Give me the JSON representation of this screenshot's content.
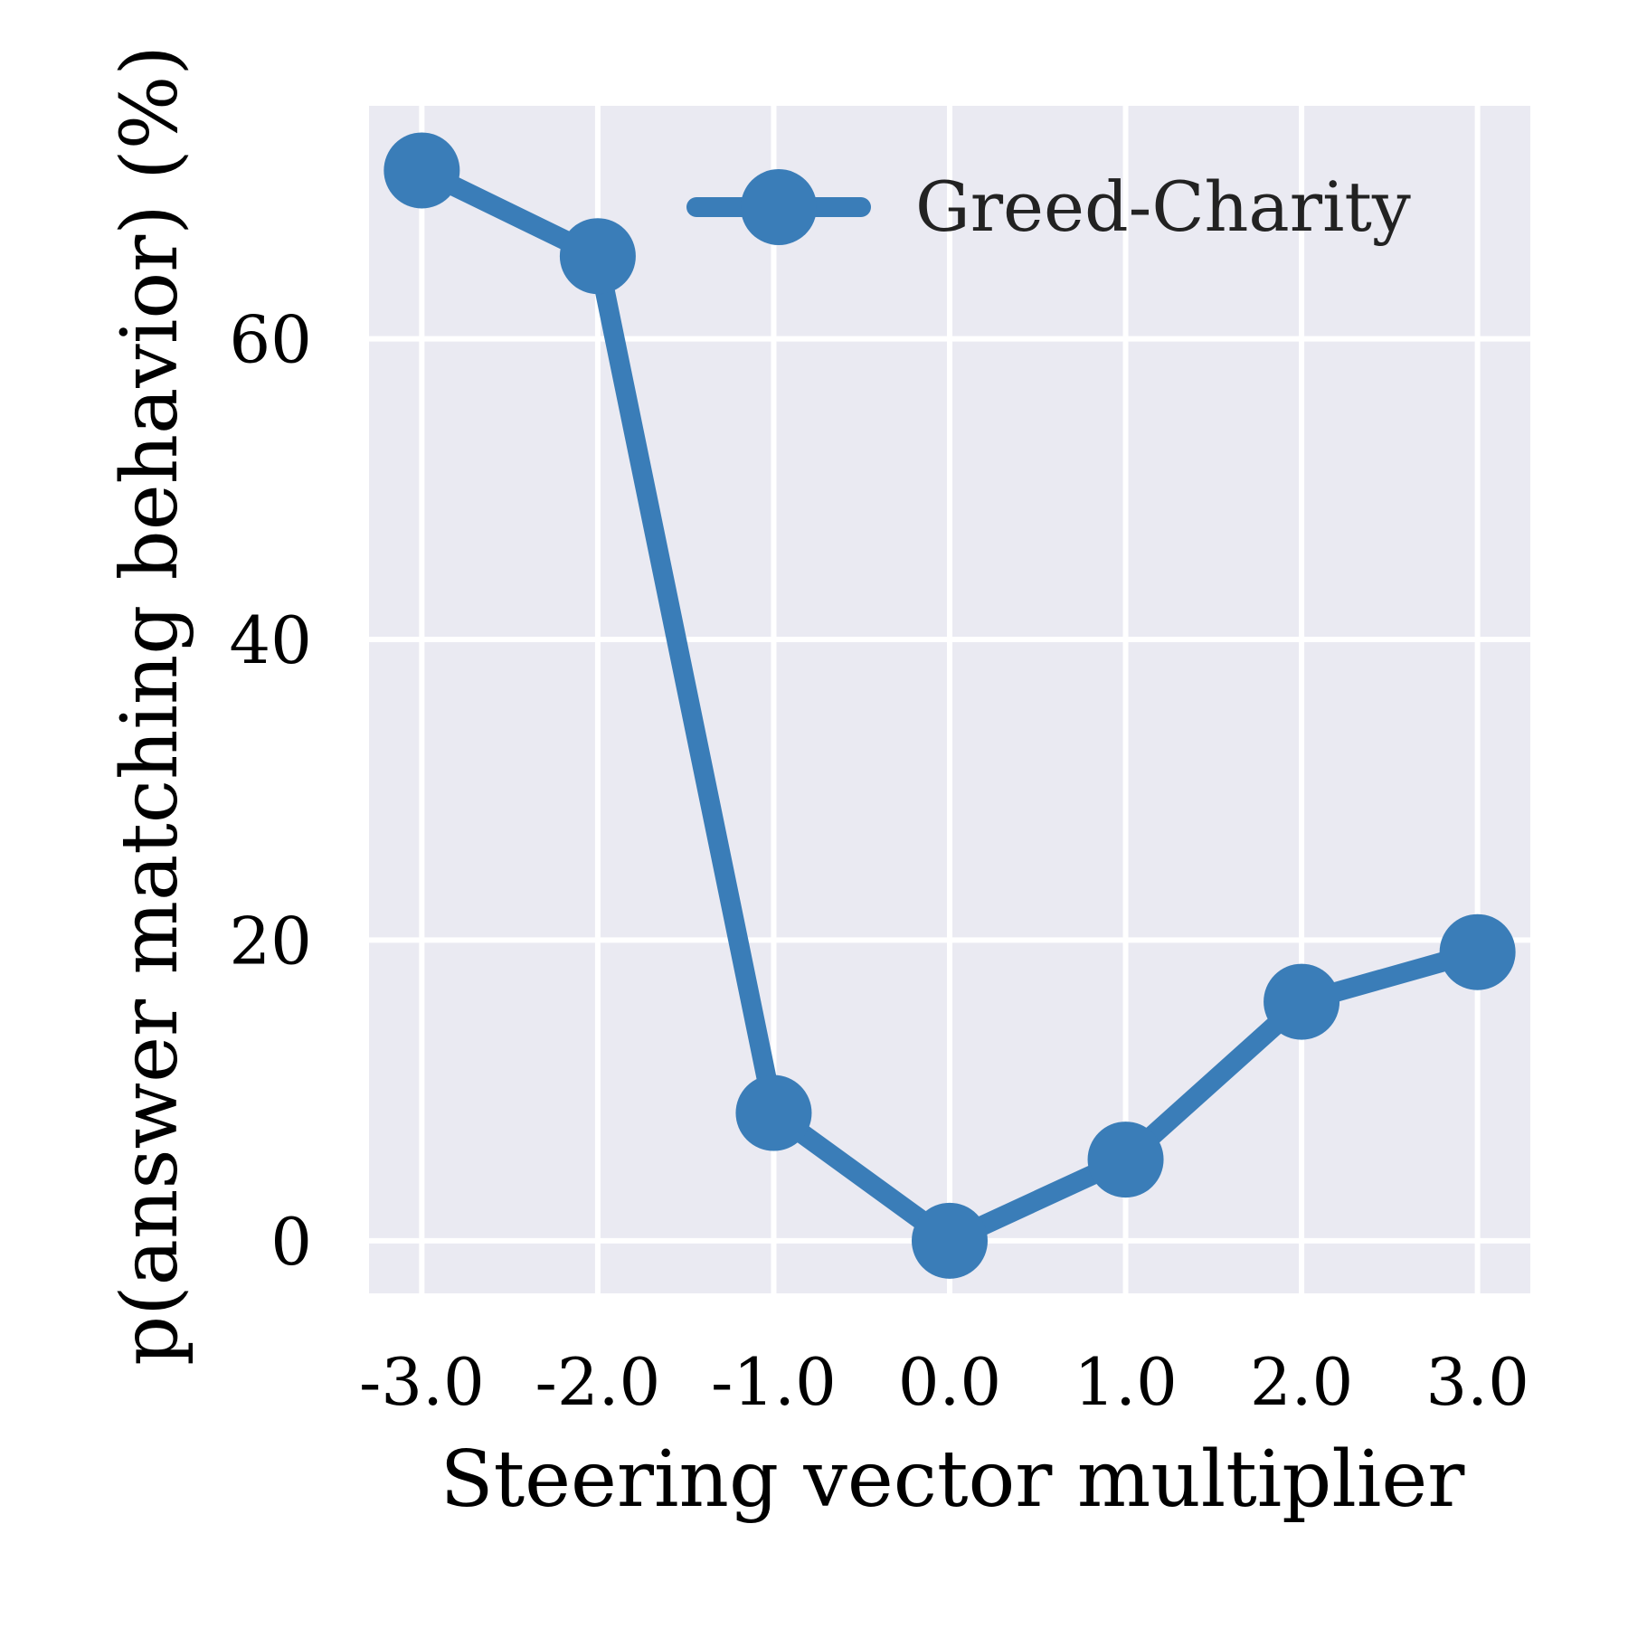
{
  "chart_data": {
    "type": "line",
    "title": "",
    "xlabel": "Steering vector multiplier",
    "ylabel": "p(answer matching behavior) (%)",
    "x": [
      -3.0,
      -2.0,
      -1.0,
      0.0,
      1.0,
      2.0,
      3.0
    ],
    "xtick_labels": [
      "-3.0",
      "-2.0",
      "-1.0",
      "0.0",
      "1.0",
      "2.0",
      "3.0"
    ],
    "yticks": [
      0,
      20,
      40,
      60
    ],
    "ytick_labels": [
      "0",
      "20",
      "40",
      "60"
    ],
    "xlim": [
      -3.3,
      3.3
    ],
    "ylim": [
      -3.5,
      75.5
    ],
    "grid": true,
    "legend_position": "top-right",
    "series": [
      {
        "name": "Greed-Charity",
        "color": "#3a7db8",
        "values": [
          71.2,
          65.5,
          8.5,
          0.0,
          5.4,
          15.9,
          19.2
        ]
      }
    ],
    "background_color": "#eaeaf2"
  }
}
